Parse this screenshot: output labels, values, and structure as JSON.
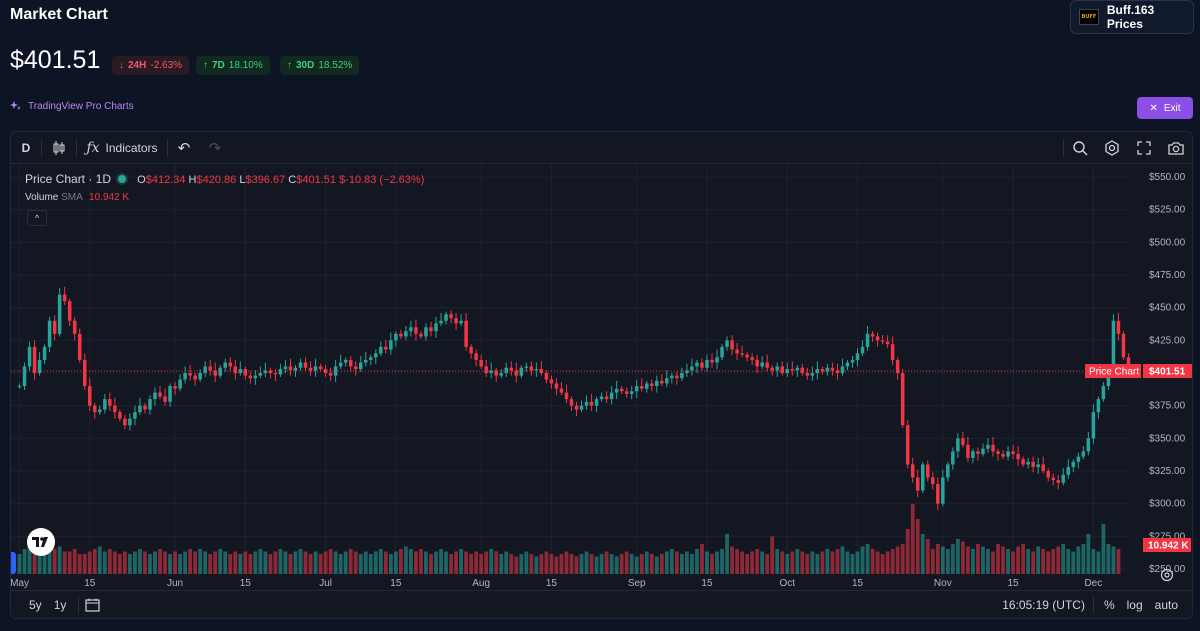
{
  "header": {
    "title": "Market Chart",
    "buff_button_label": "Buff.163 Prices",
    "buff_logo_text": "BUFF",
    "price": "$401.51",
    "badges": [
      {
        "period": "24H",
        "change": "-2.63%",
        "direction": "down"
      },
      {
        "period": "7D",
        "change": "18.10%",
        "direction": "up"
      },
      {
        "period": "30D",
        "change": "18.52%",
        "direction": "up"
      }
    ],
    "tradingview_link": "TradingView Pro Charts",
    "exit_label": "Exit"
  },
  "toolbar": {
    "interval": "D",
    "indicators_label": "Indicators"
  },
  "legend": {
    "title": "Price Chart · 1D",
    "o_label": "O",
    "o_value": "$412.34",
    "h_label": "H",
    "h_value": "$420.86",
    "l_label": "L",
    "l_value": "$396.67",
    "c_label": "C",
    "c_value": "$401.51",
    "change": "$-10.83 (−2.63%)",
    "volume_label": "Volume",
    "volume_sma_label": "SMA",
    "volume_value": "10.942 K",
    "collapse_glyph": "^"
  },
  "bottom": {
    "range_5y": "5y",
    "range_1y": "1y",
    "time": "16:05:19 (UTC)",
    "percent": "%",
    "log": "log",
    "auto": "auto"
  },
  "colors": {
    "up": "#26a69a",
    "down": "#f23645",
    "accent": "#8b4fe6"
  },
  "chart_data": {
    "type": "candlestick",
    "title": "Price Chart · 1D",
    "y_ticks": [
      "$250.00",
      "$275.00",
      "$300.00",
      "$325.00",
      "$350.00",
      "$375.00",
      "$400.00",
      "$425.00",
      "$450.00",
      "$475.00",
      "$500.00",
      "$525.00",
      "$550.00"
    ],
    "y_tick_values": [
      250,
      275,
      300,
      325,
      350,
      375,
      400,
      425,
      450,
      475,
      500,
      525,
      550
    ],
    "x_ticks": [
      "May",
      "15",
      "Jun",
      "15",
      "Jul",
      "15",
      "Aug",
      "15",
      "Sep",
      "15",
      "Oct",
      "15",
      "Nov",
      "15",
      "Dec"
    ],
    "x_tick_days": [
      0,
      14,
      31,
      45,
      61,
      75,
      92,
      106,
      123,
      137,
      153,
      167,
      184,
      198,
      214
    ],
    "ylim": [
      240,
      560
    ],
    "last_price_label": "Price Chart",
    "last_price_value": "$401.51",
    "last_price": 401.51,
    "volume_tag": "10.942 K",
    "closes": [
      390,
      405,
      420,
      400,
      410,
      420,
      440,
      430,
      460,
      455,
      440,
      430,
      410,
      390,
      375,
      370,
      372,
      380,
      375,
      370,
      365,
      360,
      365,
      370,
      375,
      372,
      380,
      385,
      382,
      378,
      390,
      388,
      395,
      400,
      398,
      395,
      400,
      405,
      402,
      398,
      404,
      408,
      405,
      400,
      403,
      398,
      396,
      398,
      400,
      402,
      400,
      399,
      403,
      405,
      402,
      404,
      408,
      404,
      402,
      405,
      403,
      400,
      398,
      405,
      408,
      410,
      405,
      403,
      408,
      410,
      412,
      415,
      420,
      418,
      425,
      430,
      428,
      432,
      435,
      430,
      428,
      435,
      432,
      438,
      440,
      445,
      442,
      438,
      440,
      420,
      415,
      410,
      405,
      400,
      402,
      398,
      400,
      404,
      402,
      398,
      404,
      405,
      402,
      403,
      400,
      395,
      392,
      388,
      385,
      380,
      375,
      372,
      375,
      378,
      375,
      380,
      382,
      380,
      385,
      388,
      386,
      384,
      386,
      390,
      388,
      392,
      390,
      394,
      392,
      396,
      398,
      396,
      400,
      402,
      405,
      408,
      404,
      410,
      408,
      412,
      420,
      425,
      418,
      415,
      414,
      412,
      410,
      405,
      408,
      404,
      402,
      405,
      400,
      403,
      402,
      404,
      400,
      398,
      400,
      403,
      401,
      404,
      402,
      400,
      405,
      408,
      410,
      415,
      420,
      430,
      428,
      425,
      424,
      422,
      410,
      400,
      360,
      330,
      320,
      310,
      330,
      320,
      315,
      300,
      320,
      330,
      340,
      350,
      345,
      335,
      340,
      338,
      342,
      345,
      340,
      338,
      336,
      340,
      338,
      334,
      330,
      332,
      328,
      330,
      325,
      320,
      318,
      316,
      322,
      328,
      332,
      336,
      340,
      350,
      370,
      380,
      390,
      400,
      440,
      430,
      412,
      401.51
    ],
    "volumes": [
      8,
      10,
      12,
      9,
      11,
      14,
      12,
      10,
      11,
      9,
      9,
      10,
      8,
      8,
      9,
      10,
      11,
      9,
      10,
      9,
      8,
      9,
      8,
      9,
      10,
      9,
      8,
      9,
      10,
      9,
      8,
      9,
      8,
      9,
      10,
      9,
      10,
      9,
      8,
      9,
      10,
      9,
      8,
      9,
      8,
      9,
      8,
      9,
      10,
      9,
      8,
      9,
      10,
      9,
      8,
      9,
      10,
      9,
      8,
      9,
      8,
      9,
      10,
      9,
      8,
      9,
      10,
      9,
      8,
      9,
      8,
      9,
      10,
      9,
      8,
      9,
      10,
      11,
      10,
      9,
      10,
      9,
      8,
      9,
      10,
      9,
      8,
      9,
      10,
      9,
      8,
      9,
      8,
      9,
      10,
      9,
      8,
      9,
      8,
      7,
      8,
      9,
      8,
      7,
      8,
      9,
      8,
      7,
      8,
      9,
      8,
      7,
      8,
      9,
      8,
      7,
      8,
      9,
      8,
      7,
      8,
      9,
      8,
      7,
      8,
      9,
      8,
      7,
      8,
      9,
      10,
      9,
      8,
      9,
      8,
      10,
      12,
      9,
      8,
      9,
      10,
      16,
      11,
      10,
      9,
      8,
      9,
      10,
      9,
      8,
      15,
      10,
      9,
      8,
      9,
      10,
      9,
      8,
      9,
      8,
      9,
      10,
      9,
      10,
      11,
      9,
      8,
      9,
      11,
      12,
      10,
      9,
      8,
      9,
      10,
      11,
      12,
      18,
      28,
      22,
      16,
      14,
      10,
      12,
      11,
      10,
      12,
      14,
      13,
      11,
      10,
      12,
      11,
      10,
      9,
      12,
      11,
      10,
      9,
      11,
      12,
      10,
      9,
      11,
      10,
      9,
      10,
      11,
      12,
      10,
      9,
      11,
      12,
      16,
      10,
      9,
      20,
      12,
      11,
      10
    ]
  }
}
